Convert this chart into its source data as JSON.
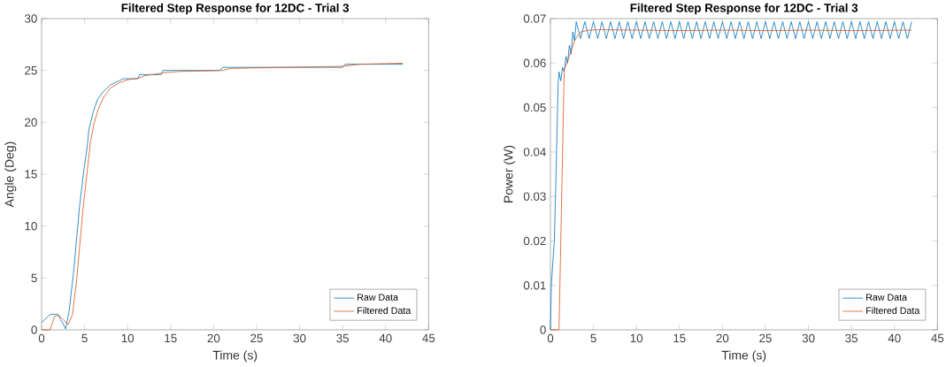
{
  "chart_data": [
    {
      "type": "line",
      "title": "Filtered Step Response for 12DC - Trial 3",
      "xlabel": "Time (s)",
      "ylabel": "Angle (Deg)",
      "xlim": [
        0,
        45
      ],
      "ylim": [
        0,
        30
      ],
      "xticks": [
        0,
        5,
        10,
        15,
        20,
        25,
        30,
        35,
        40,
        45
      ],
      "yticks": [
        0,
        5,
        10,
        15,
        20,
        25,
        30
      ],
      "legend": "bottom right",
      "series": [
        {
          "name": "Raw Data",
          "color": "#0072bd",
          "x": [
            0,
            1.0,
            1.9,
            2.2,
            2.5,
            2.8,
            3.2,
            3.7,
            4.4,
            4.9,
            5.3,
            5.5,
            6.0,
            6.5,
            7.1,
            8.0,
            9.5,
            11.2,
            11.4,
            13.9,
            14.1,
            20.7,
            21.1,
            35.0,
            35.3,
            42.0
          ],
          "values": [
            0.7,
            1.5,
            1.5,
            1.0,
            0.6,
            0.1,
            1.8,
            5.4,
            11.8,
            15.3,
            17.6,
            19.3,
            21.0,
            22.2,
            22.9,
            23.6,
            24.2,
            24.2,
            24.6,
            24.6,
            25.0,
            25.0,
            25.3,
            25.3,
            25.6,
            25.6
          ]
        },
        {
          "name": "Filtered Data",
          "color": "#d95319",
          "x": [
            0,
            1.0,
            1.5,
            2.0,
            2.6,
            3.1,
            3.6,
            4.1,
            4.8,
            5.3,
            5.7,
            6.1,
            6.6,
            7.2,
            8.0,
            9.0,
            10.0,
            11.5,
            12.0,
            14.5,
            16.0,
            21.0,
            22.0,
            35.0,
            37.0,
            42.0
          ],
          "values": [
            0,
            0,
            1.3,
            1.4,
            0.9,
            0.5,
            1.5,
            5.0,
            11.5,
            15.3,
            18.2,
            19.9,
            21.3,
            22.4,
            23.3,
            23.8,
            24.1,
            24.3,
            24.5,
            24.8,
            24.9,
            25.0,
            25.2,
            25.4,
            25.6,
            25.7
          ]
        }
      ]
    },
    {
      "type": "line",
      "title": "Filtered Step Response for 12DC - Trial 3",
      "xlabel": "Time (s)",
      "ylabel": "Power (W)",
      "xlim": [
        0,
        45
      ],
      "ylim": [
        0,
        0.07
      ],
      "xticks": [
        0,
        5,
        10,
        15,
        20,
        25,
        30,
        35,
        40,
        45
      ],
      "yticks": [
        0,
        0.01,
        0.02,
        0.03,
        0.04,
        0.05,
        0.06,
        0.07
      ],
      "legend": "bottom right",
      "series": [
        {
          "name": "Raw Data",
          "color": "#0072bd",
          "x": [
            0,
            0.1,
            0.45,
            0.6,
            0.9,
            1.0,
            1.2,
            1.4,
            1.6,
            1.8,
            2.0,
            2.2,
            2.4,
            2.6,
            2.8,
            3,
            3.5,
            4,
            4.5,
            5,
            5.5,
            6,
            6.5,
            7,
            7.5,
            8,
            8.5,
            9,
            9.5,
            10,
            10.5,
            11,
            11.5,
            12,
            12.5,
            13,
            13.5,
            14,
            14.5,
            15,
            15.5,
            16,
            16.5,
            17,
            17.5,
            18,
            18.5,
            19,
            19.5,
            20,
            20.5,
            21,
            21.5,
            22,
            22.5,
            23,
            23.5,
            24,
            24.5,
            25,
            25.5,
            26,
            26.5,
            27,
            27.5,
            28,
            28.5,
            29,
            29.5,
            30,
            30.5,
            31,
            31.5,
            32,
            32.5,
            33,
            33.5,
            34,
            34.5,
            35,
            35.5,
            36,
            36.5,
            37,
            37.5,
            38,
            38.5,
            39,
            39.5,
            40,
            40.5,
            41,
            41.5,
            42
          ],
          "values": [
            0,
            0.01,
            0.02,
            0.031,
            0.0558,
            0.058,
            0.056,
            0.059,
            0.058,
            0.0615,
            0.06,
            0.064,
            0.062,
            0.067,
            0.065,
            0.0693,
            0.0655,
            0.0693,
            0.0655,
            0.0693,
            0.0655,
            0.0693,
            0.0655,
            0.0693,
            0.0655,
            0.0693,
            0.0655,
            0.0693,
            0.0655,
            0.0693,
            0.0655,
            0.0693,
            0.0655,
            0.0693,
            0.0655,
            0.0693,
            0.0655,
            0.0693,
            0.0655,
            0.0693,
            0.0655,
            0.0693,
            0.0655,
            0.0693,
            0.0655,
            0.0693,
            0.0655,
            0.0693,
            0.0655,
            0.0693,
            0.0655,
            0.0693,
            0.0655,
            0.0693,
            0.0655,
            0.0693,
            0.0655,
            0.0693,
            0.0655,
            0.0693,
            0.0655,
            0.0693,
            0.0655,
            0.0693,
            0.0655,
            0.0693,
            0.0655,
            0.0693,
            0.0655,
            0.0693,
            0.0655,
            0.0693,
            0.0655,
            0.0693,
            0.0655,
            0.0693,
            0.0655,
            0.0693,
            0.0655,
            0.0693,
            0.0655,
            0.0693,
            0.0655,
            0.0693,
            0.0655,
            0.0693,
            0.0655,
            0.0693,
            0.0655,
            0.0693,
            0.0655,
            0.0693,
            0.0655,
            0.0693
          ]
        },
        {
          "name": "Filtered Data",
          "color": "#d95319",
          "x": [
            0,
            1.0,
            1.6,
            2.2,
            2.8,
            3.5,
            4.5,
            6,
            10,
            15,
            20,
            25,
            30,
            35,
            42
          ],
          "values": [
            0,
            0,
            0.0585,
            0.0615,
            0.065,
            0.067,
            0.0674,
            0.0675,
            0.0674,
            0.0673,
            0.0674,
            0.0673,
            0.0674,
            0.0673,
            0.0674
          ]
        }
      ]
    }
  ]
}
